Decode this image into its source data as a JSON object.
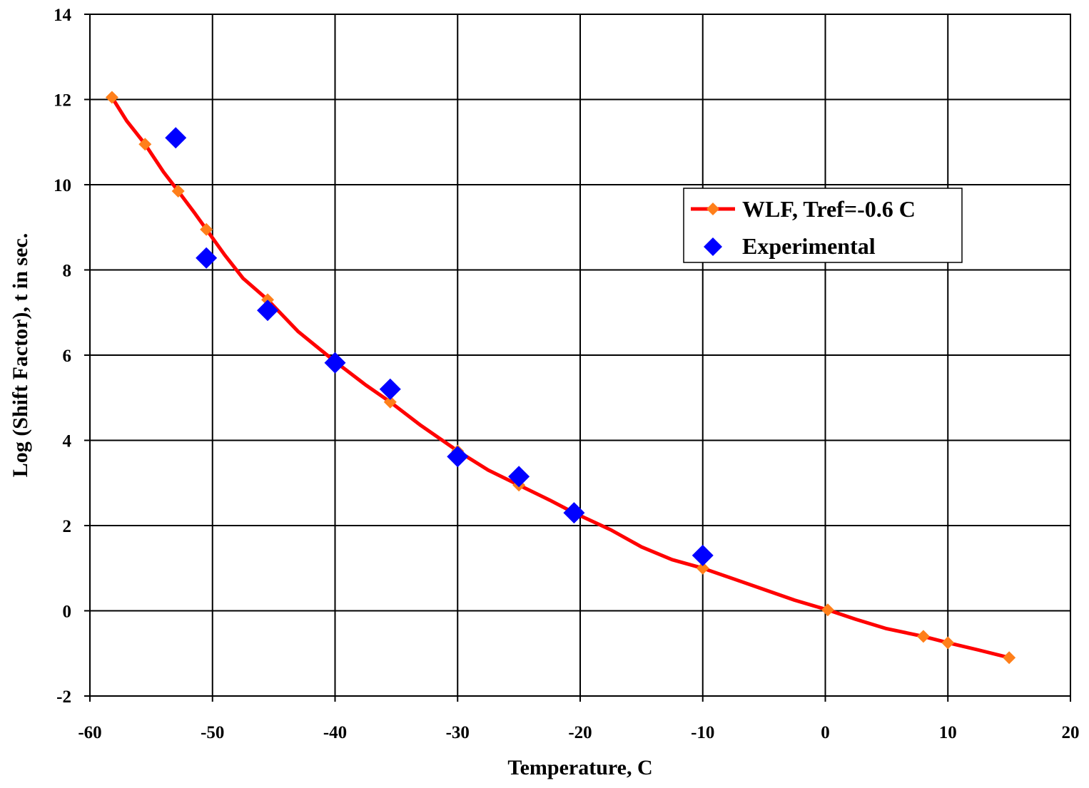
{
  "chart_data": {
    "type": "scatter",
    "title": "",
    "xlabel": "Temperature, C",
    "ylabel": "Log (Shift Factor), t in sec.",
    "xlim": [
      -60,
      20
    ],
    "ylim": [
      -2,
      14
    ],
    "x_ticks": [
      -60,
      -50,
      -40,
      -30,
      -20,
      -10,
      0,
      10,
      20
    ],
    "y_ticks": [
      -2,
      0,
      2,
      4,
      6,
      8,
      10,
      12,
      14
    ],
    "x_tick_labels": [
      "-60",
      "-50",
      "-40",
      "-30",
      "-20",
      "-10",
      "0",
      "10",
      "20"
    ],
    "y_tick_labels": [
      "-2",
      "0",
      "2",
      "4",
      "6",
      "8",
      "10",
      "12",
      "14"
    ],
    "grid": true,
    "legend_position": "upper-right",
    "series": [
      {
        "name": "WLF, Tref=-0.6 C",
        "style": "line-with-markers",
        "line_color": "#ff0000",
        "marker_color": "#ff7f1a",
        "marker": "diamond",
        "curve_x": [
          -58.2,
          -57,
          -55.5,
          -54,
          -52.8,
          -51.5,
          -50.5,
          -49,
          -47.5,
          -45.5,
          -43,
          -40,
          -37.5,
          -35.5,
          -33,
          -30,
          -27.5,
          -25,
          -22.5,
          -20.5,
          -17.5,
          -15,
          -12.5,
          -10,
          -7.5,
          -5,
          -2.5,
          0.2,
          2.5,
          5,
          8,
          10,
          12.5,
          15
        ],
        "curve_y": [
          12.05,
          11.5,
          10.95,
          10.3,
          9.85,
          9.35,
          8.95,
          8.35,
          7.8,
          7.3,
          6.55,
          5.85,
          5.3,
          4.9,
          4.35,
          3.75,
          3.3,
          2.95,
          2.6,
          2.3,
          1.9,
          1.5,
          1.2,
          1.0,
          0.75,
          0.5,
          0.25,
          0.02,
          -0.2,
          -0.42,
          -0.6,
          -0.75,
          -0.92,
          -1.1
        ],
        "marker_x": [
          -58.2,
          -55.5,
          -52.8,
          -50.5,
          -45.5,
          -40,
          -35.5,
          -30,
          -25,
          -20.5,
          -10,
          0.2,
          8,
          10,
          15
        ],
        "marker_y": [
          12.05,
          10.95,
          9.85,
          8.95,
          7.3,
          5.85,
          4.9,
          3.75,
          2.95,
          2.3,
          1.0,
          0.02,
          -0.6,
          -0.75,
          -1.1
        ]
      },
      {
        "name": "Experimental",
        "style": "markers",
        "marker_color": "#0000ff",
        "marker": "diamond",
        "x": [
          -53,
          -50.5,
          -45.5,
          -40,
          -35.5,
          -30,
          -25,
          -20.5,
          -10
        ],
        "y": [
          11.1,
          8.28,
          7.05,
          5.82,
          5.2,
          3.62,
          3.15,
          2.3,
          1.3
        ]
      }
    ]
  }
}
